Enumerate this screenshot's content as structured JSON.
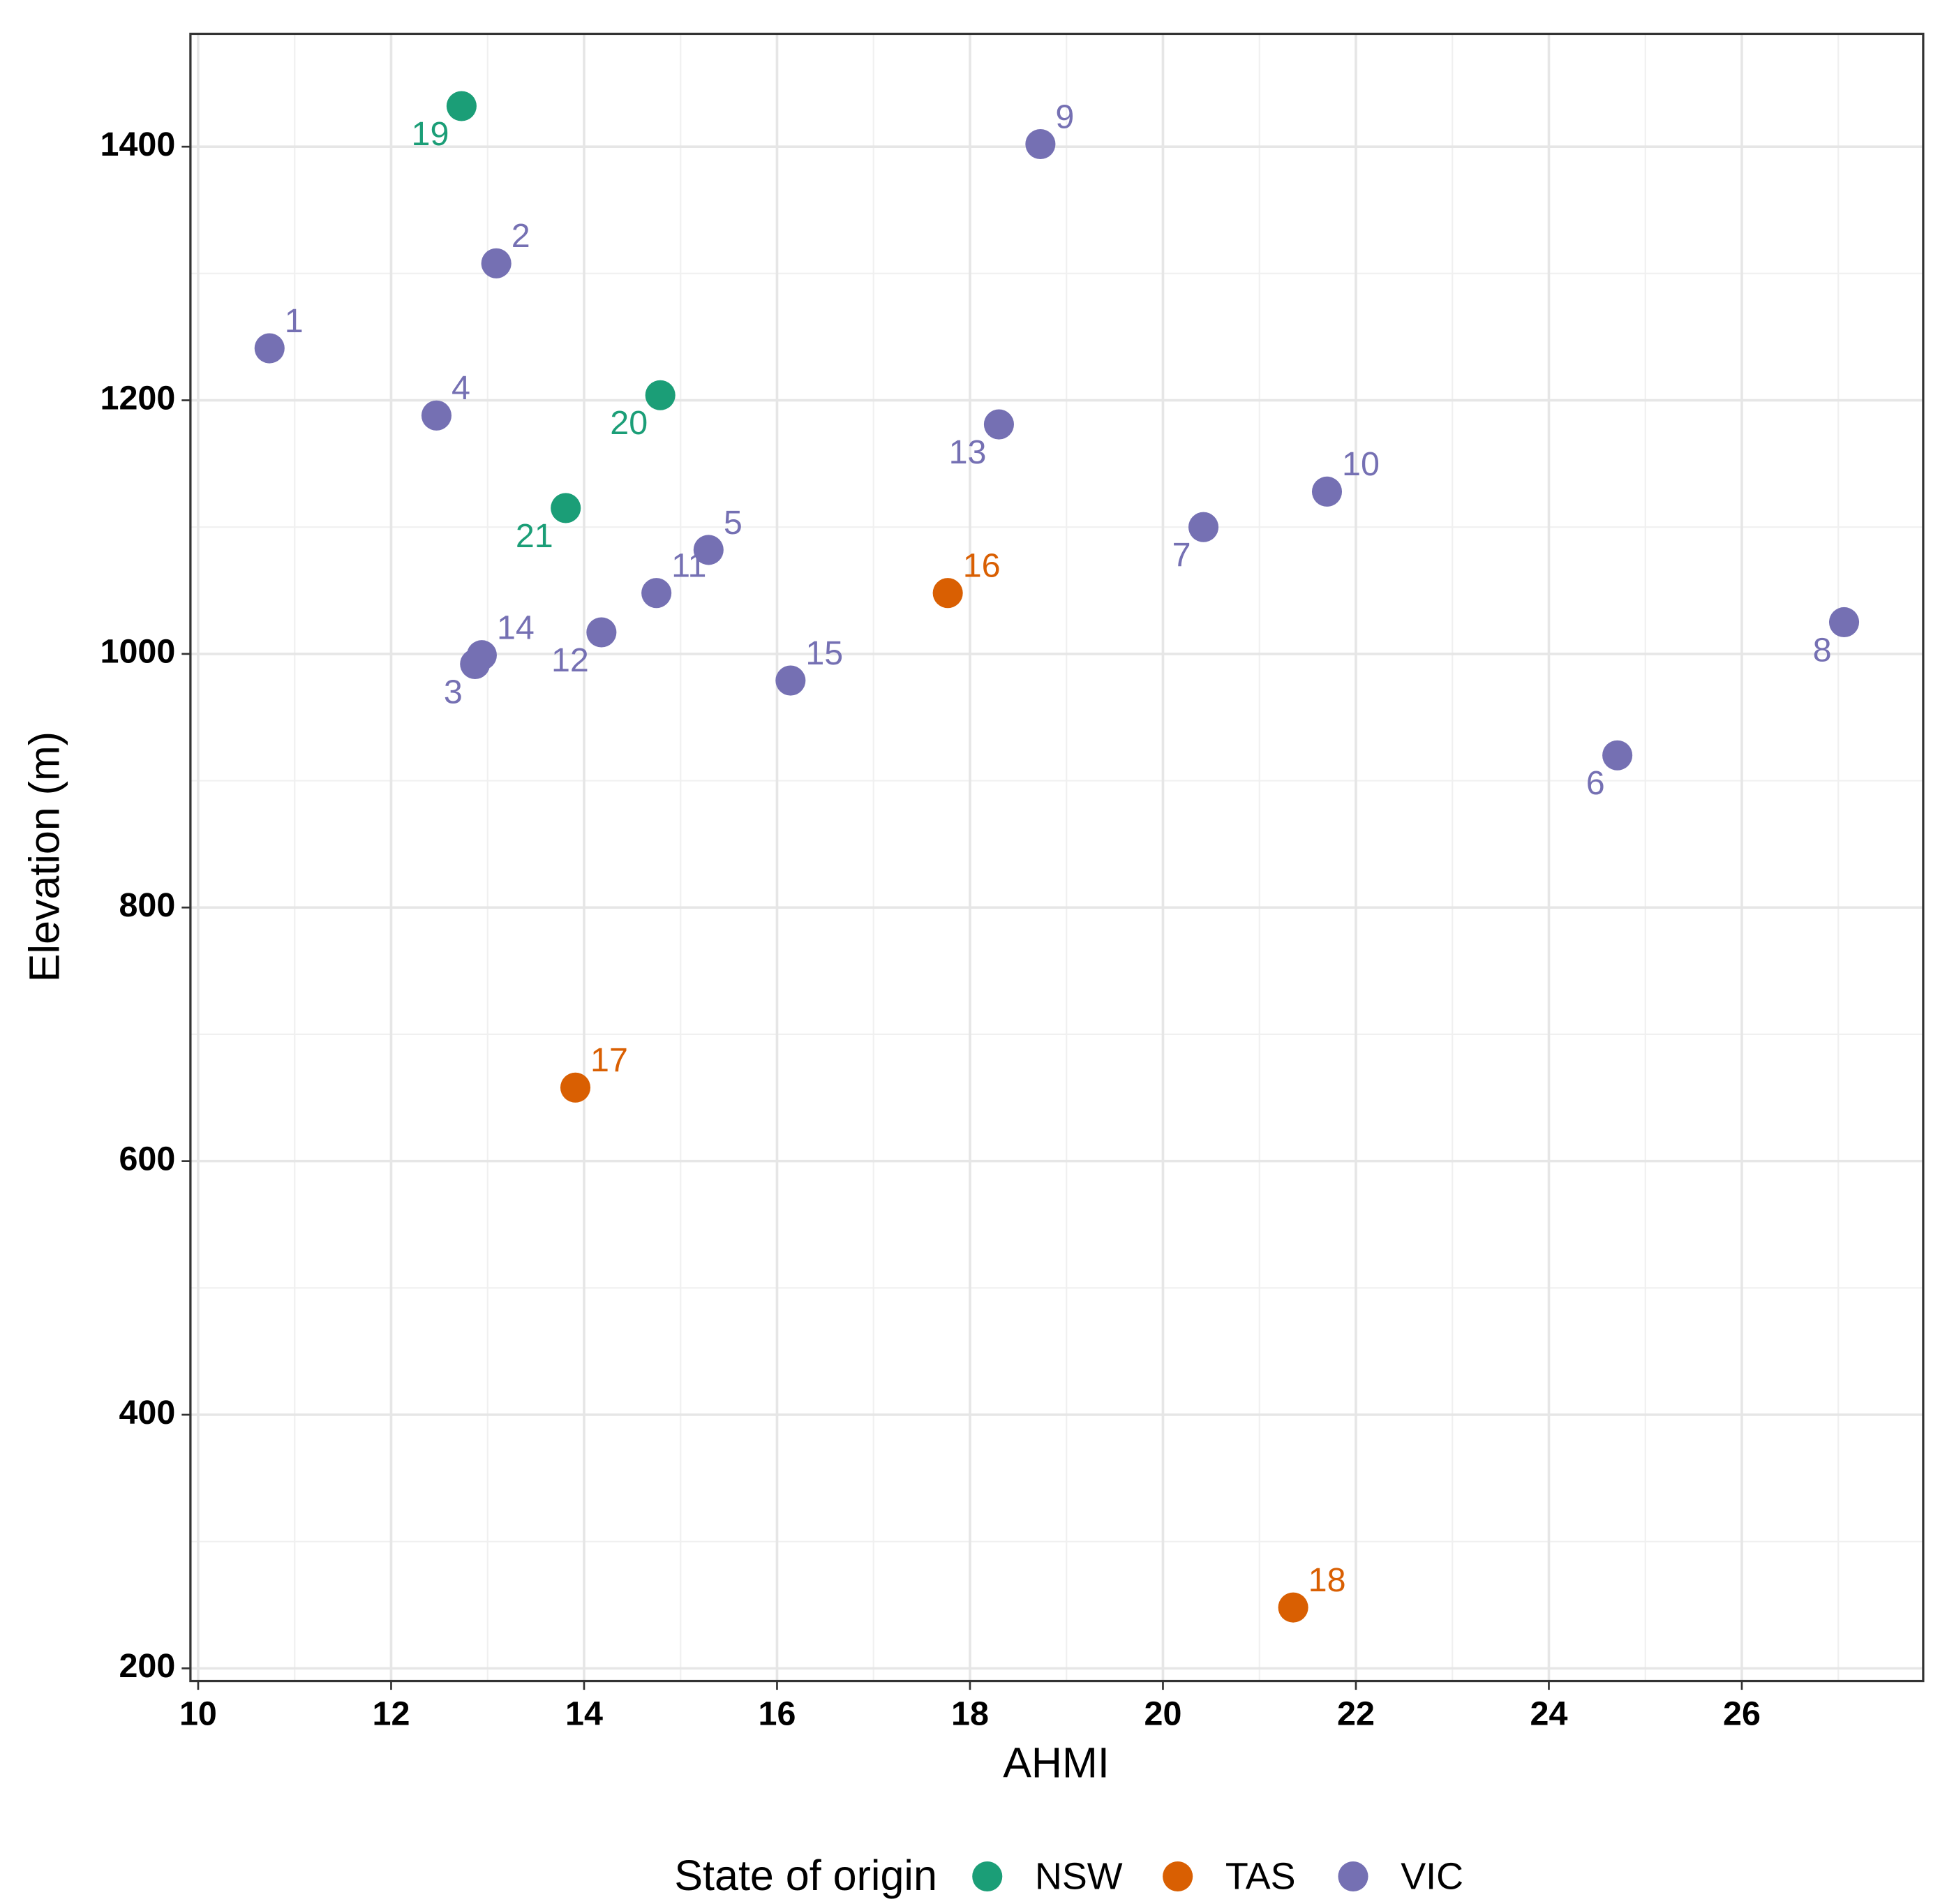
{
  "chart_data": {
    "type": "scatter",
    "xlabel": "AHMI",
    "ylabel": "Elevation (m)",
    "legend_title": "State of origin",
    "legend": "bottom",
    "grid": true,
    "xlim": [
      9.92,
      27.88
    ],
    "ylim": [
      190,
      1489
    ],
    "xticks": [
      10,
      12,
      14,
      16,
      18,
      20,
      22,
      24,
      26
    ],
    "yticks": [
      200,
      400,
      600,
      800,
      1000,
      1200,
      1400
    ],
    "series": [
      {
        "name": "NSW",
        "color": "#1b9e77",
        "labels": [
          "19",
          "20",
          "21"
        ],
        "x": [
          12.73,
          14.79,
          13.81
        ],
        "y": [
          1432,
          1204,
          1115
        ]
      },
      {
        "name": "TAS",
        "color": "#d95f02",
        "labels": [
          "16",
          "17",
          "18"
        ],
        "x": [
          17.77,
          13.91,
          21.35
        ],
        "y": [
          1048,
          658,
          248
        ]
      },
      {
        "name": "VIC",
        "color": "#7570b3",
        "labels": [
          "1",
          "2",
          "3",
          "4",
          "5",
          "6",
          "7",
          "8",
          "9",
          "10",
          "11",
          "12",
          "13",
          "14",
          "15"
        ],
        "x": [
          10.74,
          13.09,
          12.87,
          12.47,
          15.29,
          24.71,
          20.42,
          27.06,
          18.73,
          21.7,
          14.75,
          14.18,
          18.3,
          12.94,
          16.14
        ],
        "y": [
          1241,
          1308,
          992,
          1188,
          1082,
          920,
          1100,
          1025,
          1402,
          1128,
          1048,
          1017,
          1181,
          999,
          979
        ]
      }
    ]
  }
}
